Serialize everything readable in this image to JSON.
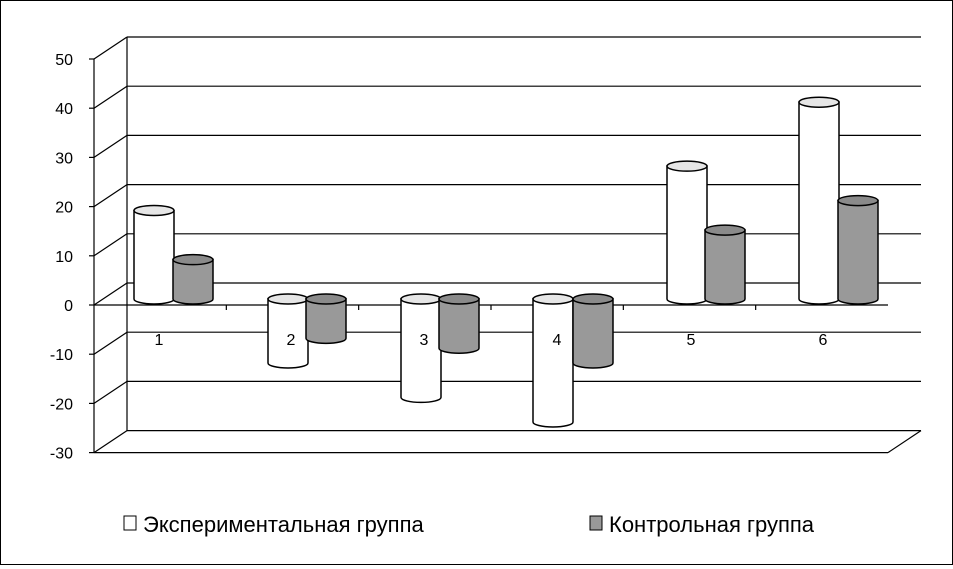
{
  "chart_data": {
    "type": "bar",
    "style": "3d-cylinder",
    "categories": [
      "1",
      "2",
      "3",
      "4",
      "5",
      "6"
    ],
    "series": [
      {
        "name": "Экспериментальная группа",
        "values": [
          18,
          -13,
          -20,
          -25,
          27,
          40
        ],
        "color": "#ffffff"
      },
      {
        "name": "Контрольная группа",
        "values": [
          8,
          -8,
          -10,
          -13,
          14,
          20
        ],
        "color": "#999999"
      }
    ],
    "yticks": [
      "50",
      "40",
      "30",
      "20",
      "10",
      "0",
      "-10",
      "-20",
      "-30"
    ],
    "ylim": [
      -30,
      50
    ],
    "grid": true,
    "legend_position": "bottom"
  }
}
